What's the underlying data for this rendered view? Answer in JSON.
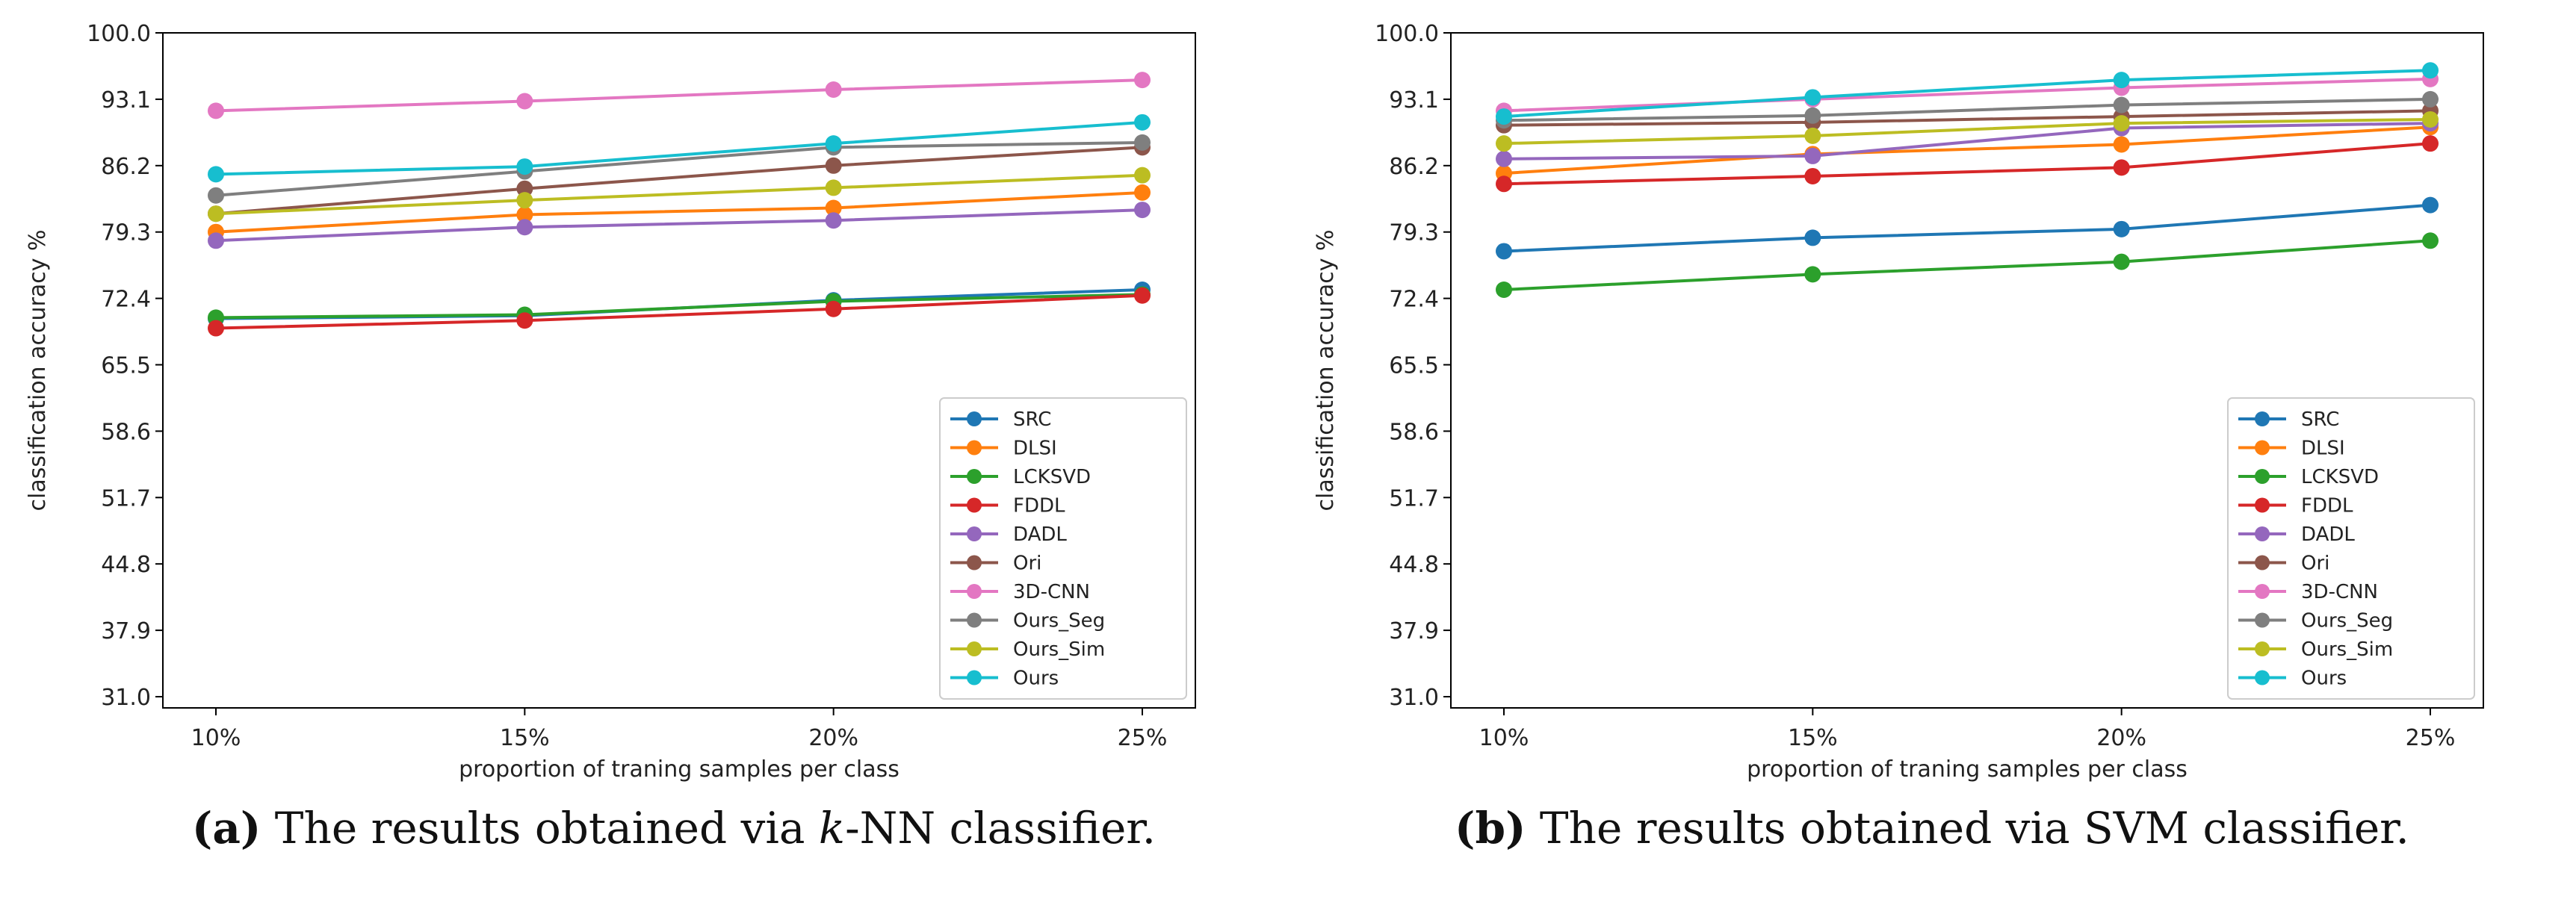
{
  "chart_data": [
    {
      "type": "line",
      "panel": "a",
      "title": "",
      "xlabel": "proportion of traning samples per class",
      "ylabel": "classification accuracy %",
      "categories": [
        "10%",
        "15%",
        "20%",
        "25%"
      ],
      "ylim": [
        31.0,
        100.0
      ],
      "yticks": [
        "31.0",
        "37.9",
        "44.8",
        "51.7",
        "58.6",
        "65.5",
        "72.4",
        "79.3",
        "86.2",
        "93.1",
        "100.0"
      ],
      "grid": false,
      "legend": "bottom-right",
      "series": [
        {
          "name": "SRC",
          "color": "#1f77b4",
          "values": [
            70.3,
            70.6,
            72.2,
            73.3
          ]
        },
        {
          "name": "DLSI",
          "color": "#ff7f0e",
          "values": [
            79.3,
            81.1,
            81.8,
            83.4
          ]
        },
        {
          "name": "LCKSVD",
          "color": "#2ca02c",
          "values": [
            70.4,
            70.7,
            72.1,
            72.8
          ]
        },
        {
          "name": "FDDL",
          "color": "#d62728",
          "values": [
            69.3,
            70.1,
            71.3,
            72.7
          ]
        },
        {
          "name": "DADL",
          "color": "#9467bd",
          "values": [
            78.4,
            79.8,
            80.5,
            81.6
          ]
        },
        {
          "name": "Ori",
          "color": "#8c564b",
          "values": [
            81.2,
            83.8,
            86.2,
            88.1
          ]
        },
        {
          "name": "3D-CNN",
          "color": "#e377c2",
          "values": [
            91.9,
            92.9,
            94.1,
            95.1
          ]
        },
        {
          "name": "Ours_Seg",
          "color": "#7f7f7f",
          "values": [
            83.1,
            85.6,
            88.1,
            88.6
          ]
        },
        {
          "name": "Ours_Sim",
          "color": "#bcbd22",
          "values": [
            81.2,
            82.6,
            83.9,
            85.2
          ]
        },
        {
          "name": "Ours",
          "color": "#17becf",
          "values": [
            85.3,
            86.1,
            88.5,
            90.7
          ]
        }
      ]
    },
    {
      "type": "line",
      "panel": "b",
      "title": "",
      "xlabel": "proportion of traning samples per class",
      "ylabel": "classification accuracy %",
      "categories": [
        "10%",
        "15%",
        "20%",
        "25%"
      ],
      "ylim": [
        31.0,
        100.0
      ],
      "yticks": [
        "31.0",
        "37.9",
        "44.8",
        "51.7",
        "58.6",
        "65.5",
        "72.4",
        "79.3",
        "86.2",
        "93.1",
        "100.0"
      ],
      "grid": false,
      "legend": "bottom-right",
      "series": [
        {
          "name": "SRC",
          "color": "#1f77b4",
          "values": [
            77.3,
            78.7,
            79.6,
            82.1
          ]
        },
        {
          "name": "DLSI",
          "color": "#ff7f0e",
          "values": [
            85.4,
            87.4,
            88.4,
            90.2
          ]
        },
        {
          "name": "LCKSVD",
          "color": "#2ca02c",
          "values": [
            73.3,
            74.9,
            76.2,
            78.4
          ]
        },
        {
          "name": "FDDL",
          "color": "#d62728",
          "values": [
            84.3,
            85.1,
            86.0,
            88.5
          ]
        },
        {
          "name": "DADL",
          "color": "#9467bd",
          "values": [
            86.9,
            87.2,
            90.1,
            90.6
          ]
        },
        {
          "name": "Ori",
          "color": "#8c564b",
          "values": [
            90.4,
            90.7,
            91.3,
            91.9
          ]
        },
        {
          "name": "3D-CNN",
          "color": "#e377c2",
          "values": [
            91.9,
            93.1,
            94.3,
            95.2
          ]
        },
        {
          "name": "Ours_Seg",
          "color": "#7f7f7f",
          "values": [
            90.9,
            91.4,
            92.5,
            93.1
          ]
        },
        {
          "name": "Ours_Sim",
          "color": "#bcbd22",
          "values": [
            88.5,
            89.3,
            90.6,
            91.0
          ]
        },
        {
          "name": "Ours",
          "color": "#17becf",
          "values": [
            91.3,
            93.3,
            95.1,
            96.1
          ]
        }
      ]
    }
  ],
  "captions": {
    "a": {
      "label": "(a)",
      "pre": " The results obtained via ",
      "italic": "k",
      "post": "-NN classifier."
    },
    "b": {
      "label": "(b)",
      "text": " The results obtained via SVM classifier."
    }
  }
}
